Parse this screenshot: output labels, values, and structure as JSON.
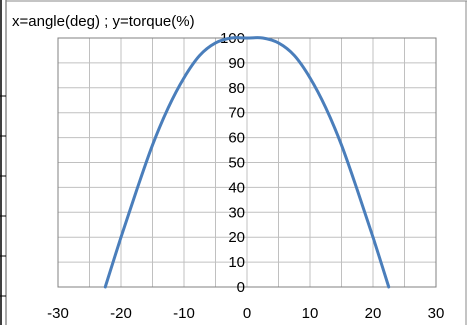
{
  "chart_data": {
    "type": "line",
    "title": "x=angle(deg) ; y=torque(%)",
    "xlabel": "",
    "ylabel": "",
    "xlim": [
      -30,
      30
    ],
    "ylim": [
      0,
      100
    ],
    "x_ticks": [
      "-30",
      "-20",
      "-10",
      "0",
      "10",
      "20",
      "30"
    ],
    "y_ticks": [
      "0",
      "10",
      "20",
      "30",
      "40",
      "50",
      "60",
      "70",
      "80",
      "90",
      "100"
    ],
    "grid": true,
    "legend": "none",
    "series": [
      {
        "color": "#4a7ebb",
        "x": [
          -22.5,
          -20,
          -17.5,
          -15,
          -12.5,
          -10,
          -7.5,
          -5,
          -2.5,
          0,
          2.5,
          5,
          7.5,
          10,
          12.5,
          15,
          17.5,
          20,
          22.5
        ],
        "y": [
          0,
          20,
          39,
          57,
          72,
          84,
          93,
          98,
          100,
          100,
          100,
          98,
          93,
          84,
          72,
          57,
          39,
          20,
          0
        ]
      }
    ]
  }
}
